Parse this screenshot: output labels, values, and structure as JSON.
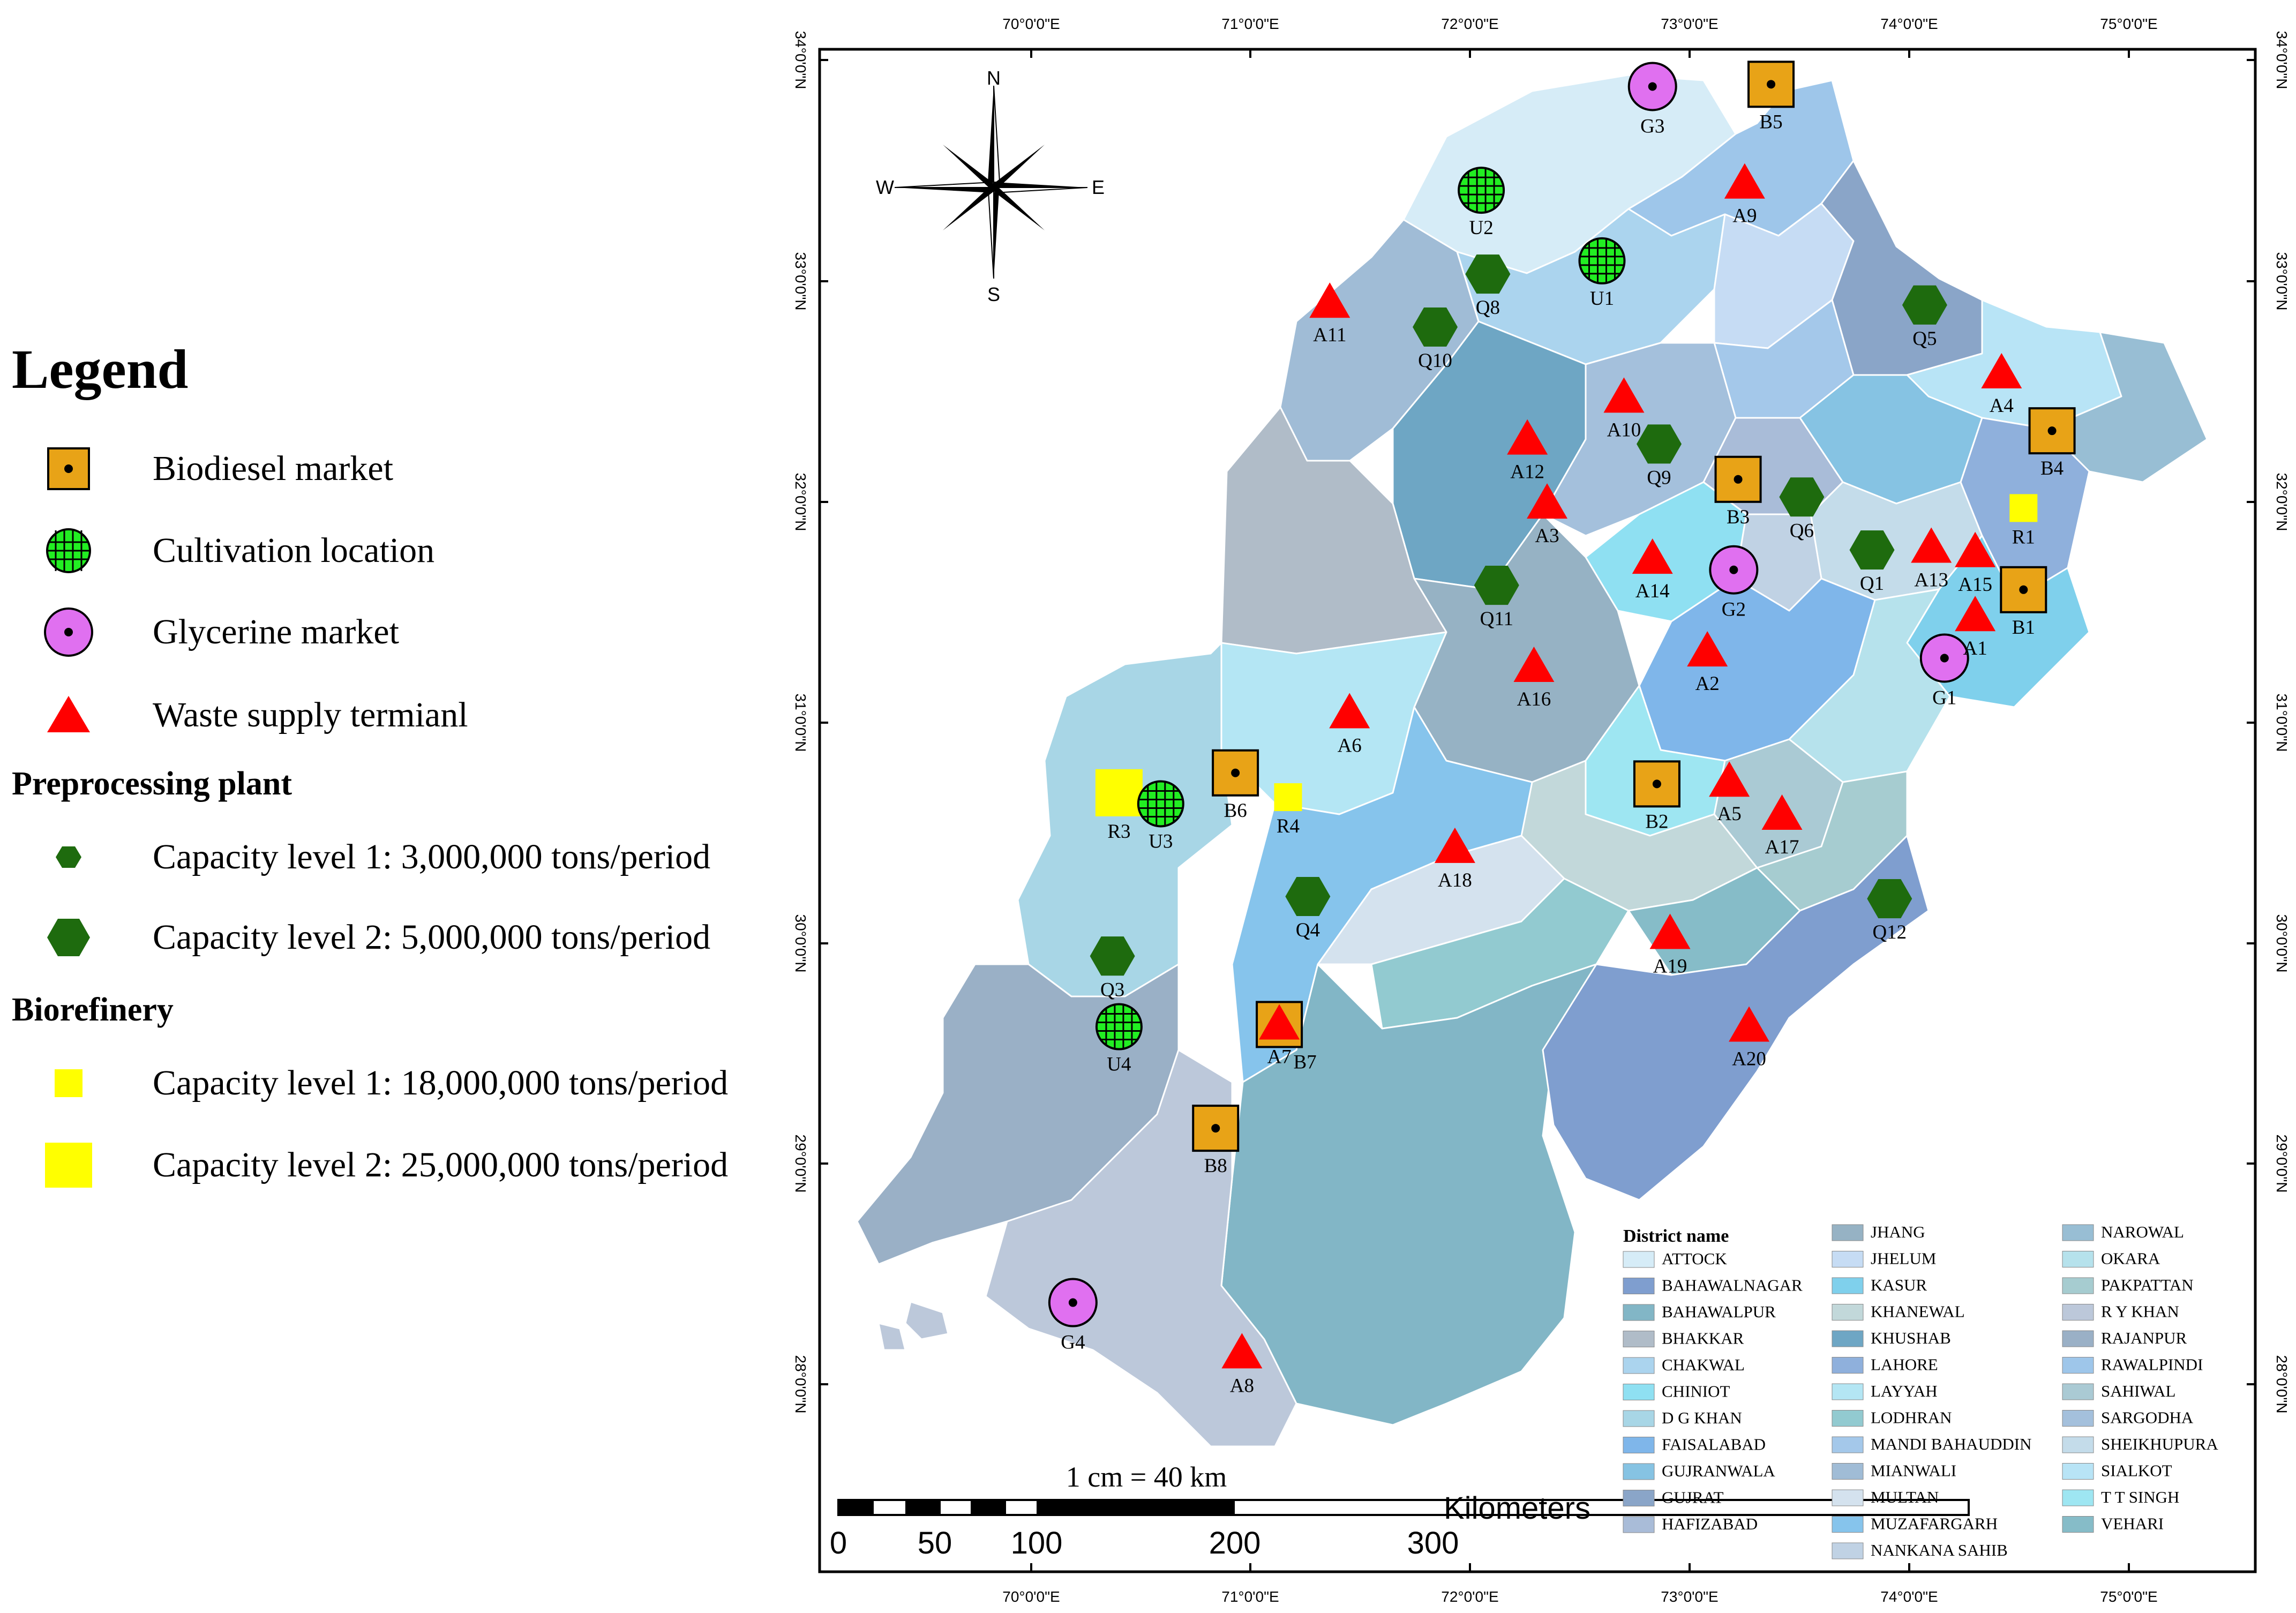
{
  "legend": {
    "title": "Legend",
    "items": [
      {
        "label": "Biodiesel market",
        "icon": "square-dot"
      },
      {
        "label": "Cultivation location",
        "icon": "circle-grid"
      },
      {
        "label": "Glycerine market",
        "icon": "circle-dot"
      },
      {
        "label": "Waste supply termianl",
        "icon": "triangle"
      }
    ],
    "preprocessing": {
      "heading": "Preprocessing plant",
      "items": [
        {
          "label": "Capacity level 1: 3,000,000 tons/period",
          "icon": "hexagon-small"
        },
        {
          "label": "Capacity level 2: 5,000,000 tons/period",
          "icon": "hexagon-large"
        }
      ]
    },
    "biorefinery": {
      "heading": "Biorefinery",
      "items": [
        {
          "label": "Capacity level 1: 18,000,000 tons/period",
          "icon": "square-small"
        },
        {
          "label": "Capacity level 2: 25,000,000 tons/period",
          "icon": "square-large"
        }
      ]
    }
  },
  "colors": {
    "biodiesel": "#e8a317",
    "cultivation": "#22ee22",
    "glycerine": "#e070f0",
    "waste": "#ff0000",
    "preprocessing": "#1e6b0e",
    "biorefinery": "#ffff00"
  },
  "axes": {
    "lon_labels": [
      "70°0'0\"E",
      "71°0'0\"E",
      "72°0'0\"E",
      "73°0'0\"E",
      "74°0'0\"E",
      "75°0'0\"E"
    ],
    "lat_labels": [
      "34°0'0\"N",
      "33°0'0\"N",
      "32°0'0\"N",
      "31°0'0\"N",
      "30°0'0\"N",
      "29°0'0\"N",
      "28°0'0\"N"
    ]
  },
  "compass": {
    "n": "N",
    "s": "S",
    "e": "E",
    "w": "W"
  },
  "scale_bar": {
    "caption": "1 cm = 40 km",
    "unit": "Kilometers",
    "ticks": [
      "0",
      "50",
      "100",
      "200",
      "300"
    ]
  },
  "district_legend": {
    "heading": "District name",
    "col1": [
      "ATTOCK",
      "BAHAWALNAGAR",
      "BAHAWALPUR",
      "BHAKKAR",
      "CHAKWAL",
      "CHINIOT",
      "D G KHAN",
      "FAISALABAD",
      "GUJRANWALA",
      "GUJRAT",
      "HAFIZABAD"
    ],
    "col2": [
      "JHANG",
      "JHELUM",
      "KASUR",
      "KHANEWAL",
      "KHUSHAB",
      "LAHORE",
      "LAYYAH",
      "LODHRAN",
      "MANDI BAHAUDDIN",
      "MIANWALI",
      "MULTAN",
      "MUZAFARGARH",
      "NANKANA SAHIB"
    ],
    "col3": [
      "NAROWAL",
      "OKARA",
      "PAKPATTAN",
      "R Y KHAN",
      "RAJANPUR",
      "RAWALPINDI",
      "SAHIWAL",
      "SARGODHA",
      "SHEIKHUPURA",
      "SIALKOT",
      "T T SINGH",
      "VEHARI"
    ],
    "col1_colors": [
      "#d6ecf7",
      "#7f9ecf",
      "#82b6c6",
      "#b0bcc8",
      "#abd4ee",
      "#8fe0f2",
      "#a8d6e6",
      "#7fb6ea",
      "#86c3e3",
      "#8aa5c8",
      "#a9bcd8"
    ],
    "col2_colors": [
      "#96b2c4",
      "#c6dcf4",
      "#7fd0ec",
      "#c2d8da",
      "#6ea6c4",
      "#8fb0dc",
      "#b4e6f4",
      "#92cad0",
      "#a4c8ea",
      "#a0bcd6",
      "#d4e2ee",
      "#86c4ec",
      "#c0d2e4"
    ],
    "col3_colors": [
      "#98bed4",
      "#b6e2ec",
      "#a6ccd0",
      "#bcc8da",
      "#9ab0c6",
      "#9ec6ea",
      "#aacad4",
      "#a4c0dc",
      "#c4dcea",
      "#b8e4f6",
      "#9ee6f2",
      "#86bcc8"
    ]
  },
  "markers": {
    "biodiesel": [
      {
        "id": "B1",
        "lon": 74.52,
        "lat": 31.6
      },
      {
        "id": "B2",
        "lon": 72.85,
        "lat": 30.72
      },
      {
        "id": "B3",
        "lon": 73.22,
        "lat": 32.1
      },
      {
        "id": "B4",
        "lon": 74.65,
        "lat": 32.32
      },
      {
        "id": "B5",
        "lon": 73.37,
        "lat": 33.89
      },
      {
        "id": "B6",
        "lon": 70.93,
        "lat": 30.77
      },
      {
        "id": "B7",
        "lon": 71.13,
        "lat": 29.63
      },
      {
        "id": "B8",
        "lon": 70.84,
        "lat": 29.16
      }
    ],
    "cultivation": [
      {
        "id": "U1",
        "lon": 72.6,
        "lat": 33.09
      },
      {
        "id": "U2",
        "lon": 72.05,
        "lat": 33.41
      },
      {
        "id": "U3",
        "lon": 70.59,
        "lat": 30.63
      },
      {
        "id": "U4",
        "lon": 70.4,
        "lat": 29.62
      }
    ],
    "glycerine": [
      {
        "id": "G1",
        "lon": 74.16,
        "lat": 31.29
      },
      {
        "id": "G2",
        "lon": 73.2,
        "lat": 31.69
      },
      {
        "id": "G3",
        "lon": 72.83,
        "lat": 33.88
      },
      {
        "id": "G4",
        "lon": 70.19,
        "lat": 28.37
      }
    ],
    "waste": [
      {
        "id": "A1",
        "lon": 74.3,
        "lat": 31.48
      },
      {
        "id": "A2",
        "lon": 73.08,
        "lat": 31.32
      },
      {
        "id": "A3",
        "lon": 72.35,
        "lat": 31.99
      },
      {
        "id": "A4",
        "lon": 74.42,
        "lat": 32.58
      },
      {
        "id": "A5",
        "lon": 73.18,
        "lat": 30.73
      },
      {
        "id": "A6",
        "lon": 71.45,
        "lat": 31.04
      },
      {
        "id": "A7",
        "lon": 71.13,
        "lat": 29.63,
        "label": false
      },
      {
        "id": "A8",
        "lon": 70.96,
        "lat": 28.14
      },
      {
        "id": "A9",
        "lon": 73.25,
        "lat": 33.44
      },
      {
        "id": "A10",
        "lon": 72.7,
        "lat": 32.47
      },
      {
        "id": "A11",
        "lon": 71.36,
        "lat": 32.9
      },
      {
        "id": "A12",
        "lon": 72.26,
        "lat": 32.28
      },
      {
        "id": "A13",
        "lon": 74.1,
        "lat": 31.79
      },
      {
        "id": "A14",
        "lon": 72.83,
        "lat": 31.74
      },
      {
        "id": "A15",
        "lon": 74.3,
        "lat": 31.77
      },
      {
        "id": "A16",
        "lon": 72.29,
        "lat": 31.25
      },
      {
        "id": "A17",
        "lon": 73.42,
        "lat": 30.58
      },
      {
        "id": "A18",
        "lon": 71.93,
        "lat": 30.43
      },
      {
        "id": "A19",
        "lon": 72.91,
        "lat": 30.04
      },
      {
        "id": "A20",
        "lon": 73.27,
        "lat": 29.62
      }
    ],
    "preprocessing": [
      {
        "id": "Q1",
        "lon": 73.83,
        "lat": 31.78,
        "level": 2
      },
      {
        "id": "Q3",
        "lon": 70.37,
        "lat": 29.94,
        "level": 2
      },
      {
        "id": "Q4",
        "lon": 71.26,
        "lat": 30.21,
        "level": 2
      },
      {
        "id": "Q5",
        "lon": 74.07,
        "lat": 32.89,
        "level": 2
      },
      {
        "id": "Q6",
        "lon": 73.51,
        "lat": 32.02,
        "level": 2
      },
      {
        "id": "Q8",
        "lon": 72.08,
        "lat": 33.03,
        "level": 2
      },
      {
        "id": "Q9",
        "lon": 72.86,
        "lat": 32.26,
        "level": 2
      },
      {
        "id": "Q10",
        "lon": 71.84,
        "lat": 32.79,
        "level": 2
      },
      {
        "id": "Q11",
        "lon": 72.12,
        "lat": 31.62,
        "level": 2
      },
      {
        "id": "Q12",
        "lon": 73.91,
        "lat": 30.2,
        "level": 2
      }
    ],
    "biorefinery": [
      {
        "id": "R1",
        "lon": 74.52,
        "lat": 31.97,
        "level": 1
      },
      {
        "id": "R3",
        "lon": 70.4,
        "lat": 30.68,
        "level": 2
      },
      {
        "id": "R4",
        "lon": 71.17,
        "lat": 30.66,
        "level": 1
      }
    ]
  }
}
